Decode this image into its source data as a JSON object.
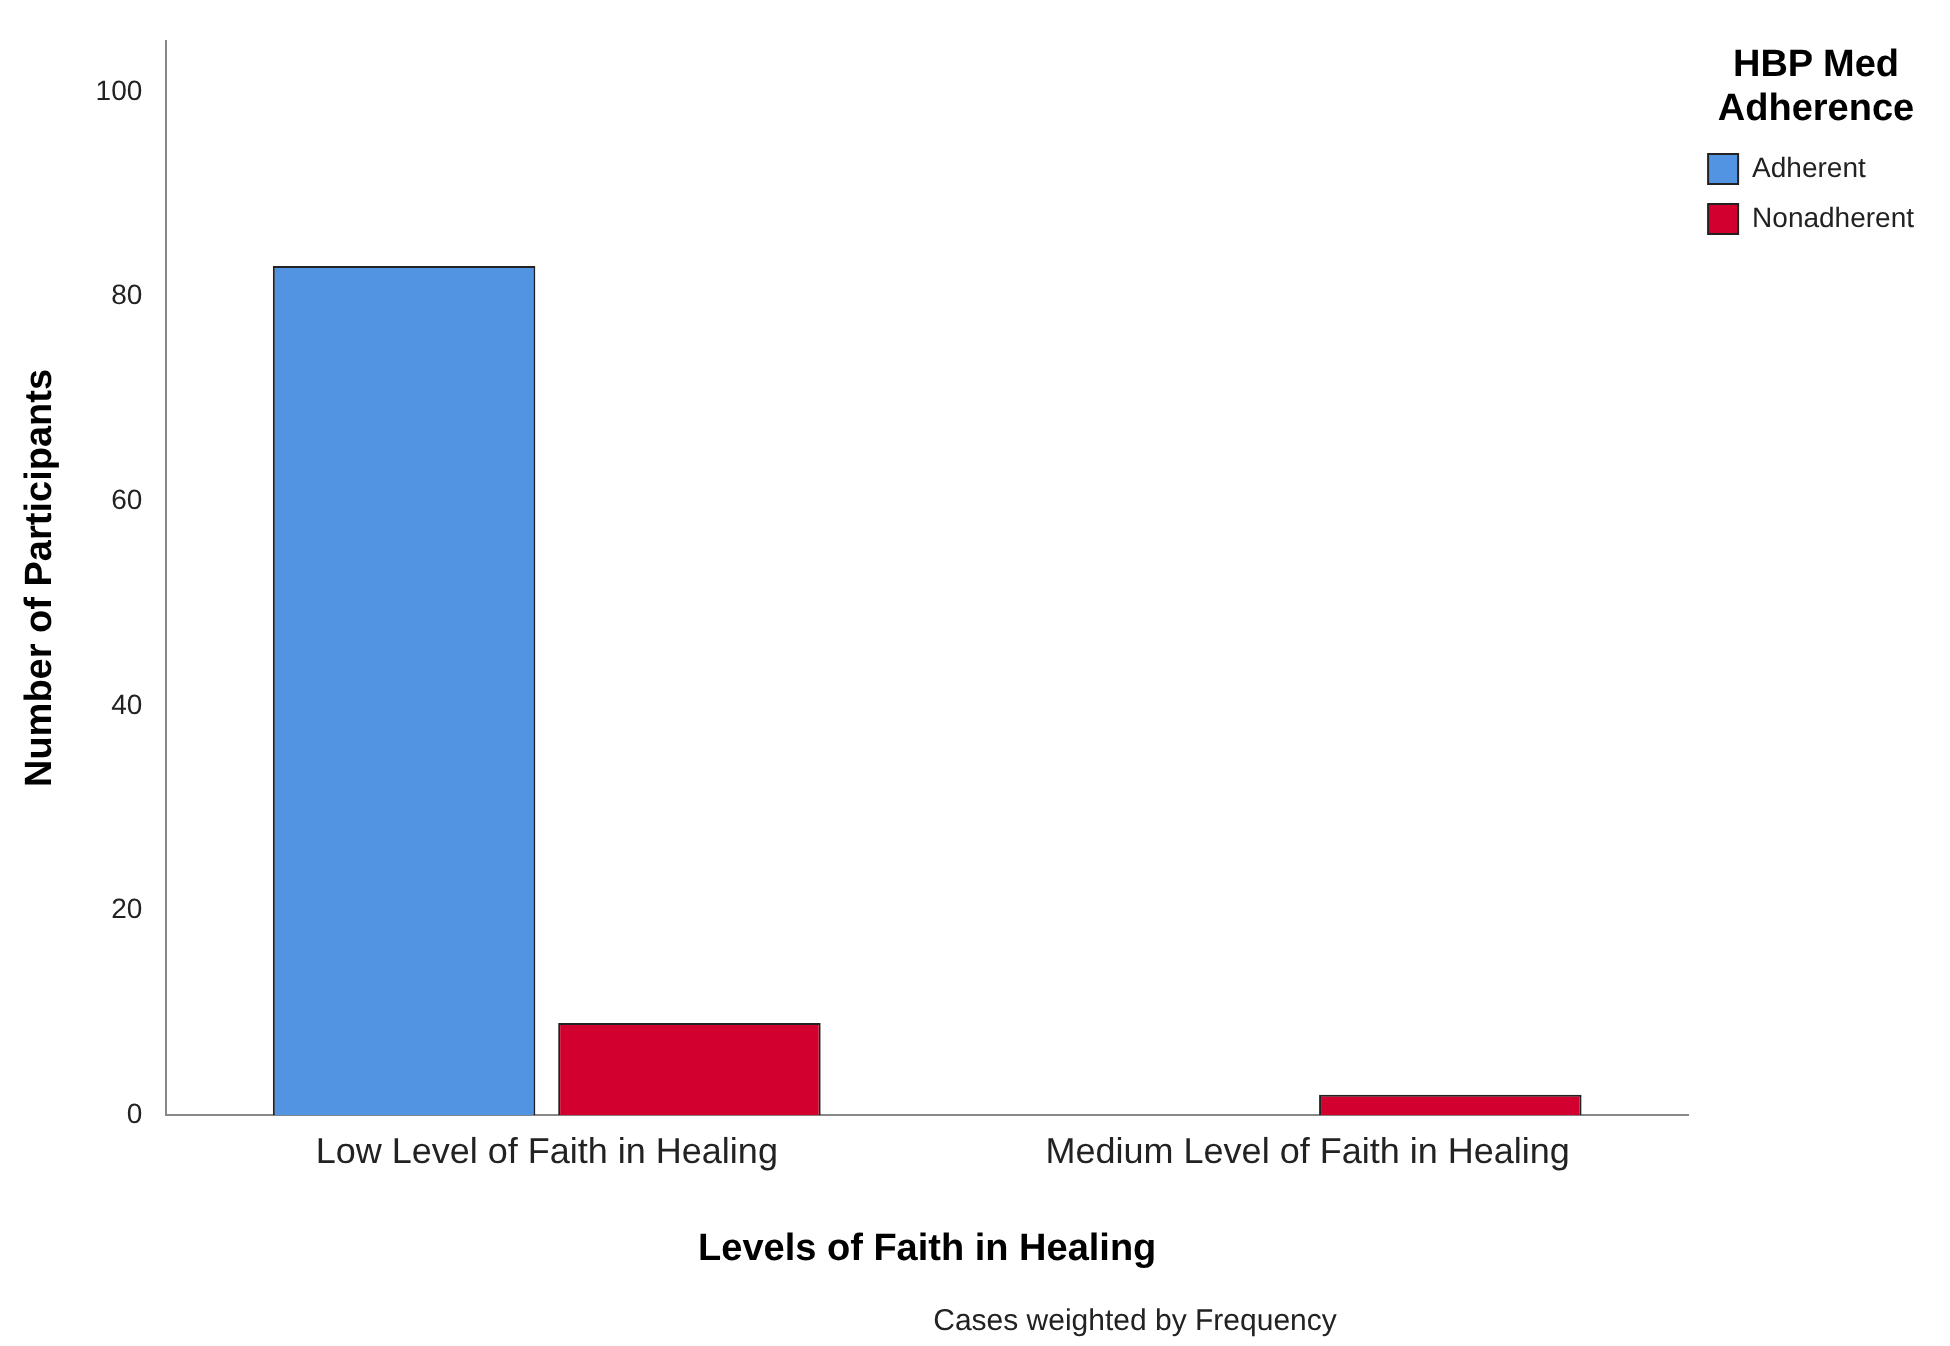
{
  "chart_data": {
    "type": "bar",
    "xlabel": "Levels of Faith in Healing",
    "ylabel": "Number of Participants",
    "legend_title": "HBP Med Adherence",
    "categories": [
      "Low Level of Faith in Healing",
      "Medium Level of Faith in Healing"
    ],
    "series": [
      {
        "name": "Adherent",
        "color": "#5294e2",
        "values": [
          83,
          0
        ]
      },
      {
        "name": "Nonadherent",
        "color": "#d1002e",
        "values": [
          9,
          2
        ]
      }
    ],
    "ylim": [
      0,
      105
    ],
    "yticks": [
      0,
      20,
      40,
      60,
      80,
      100
    ],
    "grid": false,
    "legend": "top right",
    "annotations": [
      "Cases weighted by Frequency"
    ]
  }
}
